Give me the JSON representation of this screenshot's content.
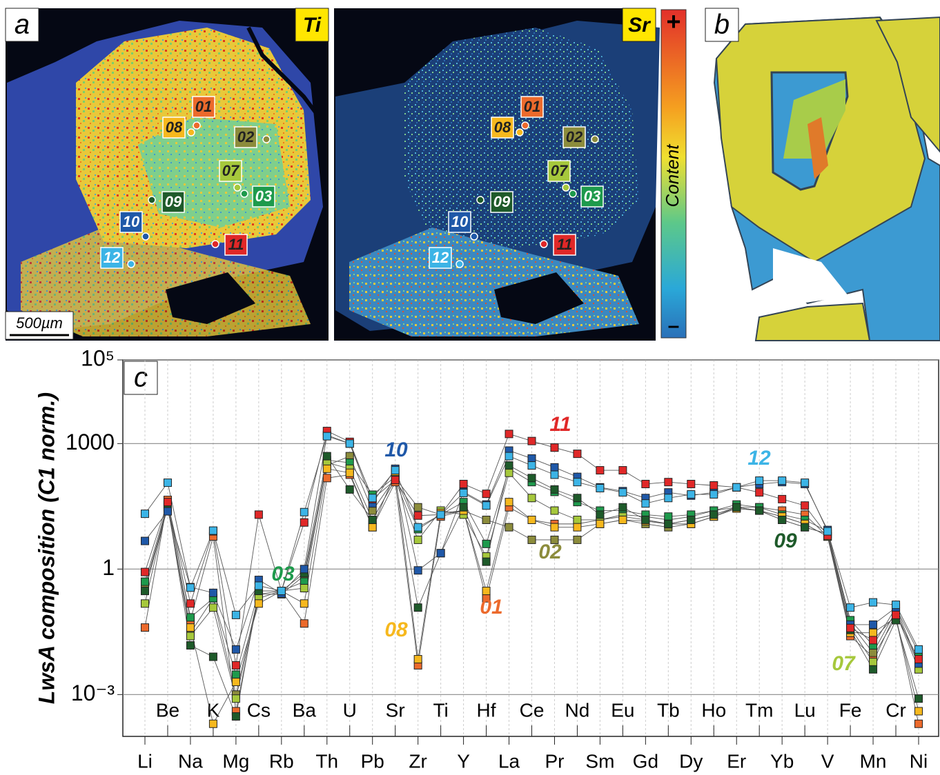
{
  "map_panels": {
    "panel_a_letter": "a",
    "ti_label": "Ti",
    "sr_label": "Sr",
    "scale_bar": "500µm",
    "colorbar_plus": "+",
    "colorbar_minus": "–",
    "colorbar_label": "Content",
    "panel_b_letter": "b",
    "spot_labels": [
      "01",
      "08",
      "02",
      "07",
      "03",
      "09",
      "10",
      "12",
      "11"
    ]
  },
  "chart_data": {
    "type": "line",
    "panel_letter": "c",
    "y_label": "LwsA composition (C1 norm.)",
    "log_y": true,
    "grid": true,
    "ylim": [
      0.0001,
      100000
    ],
    "yticks": [
      {
        "value": 100000,
        "label": "10⁵"
      },
      1000,
      1,
      {
        "value": 0.001,
        "label": "10⁻³"
      }
    ],
    "categories": [
      "Li",
      "Be",
      "Na",
      "K",
      "Mg",
      "Cs",
      "Rb",
      "Ba",
      "Th",
      "U",
      "Pb",
      "Sr",
      "Zr",
      "Ti",
      "Y",
      "Hf",
      "La",
      "Ce",
      "Pr",
      "Nd",
      "Sm",
      "Eu",
      "Gd",
      "Tb",
      "Dy",
      "Ho",
      "Er",
      "Tm",
      "Yb",
      "Lu",
      "V",
      "Fe",
      "Mn",
      "Cr",
      "Ni"
    ],
    "series": [
      {
        "name": "01",
        "color": "#ec6a2c",
        "values": [
          0.04,
          45,
          0.06,
          6,
          0.0004,
          0.25,
          0.3,
          0.05,
          150,
          180,
          10,
          120,
          0.005,
          18,
          25,
          0.2,
          30,
          15,
          12,
          12,
          15,
          20,
          18,
          15,
          18,
          25,
          30,
          30,
          25,
          20,
          6,
          0.025,
          0.008,
          0.07,
          0.0002
        ]
      },
      {
        "name": "02",
        "color": "#8c8c3c",
        "values": [
          0.4,
          30,
          0.03,
          0.2,
          0.001,
          0.25,
          0.25,
          0.7,
          300,
          500,
          25,
          150,
          30,
          20,
          25,
          15,
          10,
          5,
          5,
          5,
          12,
          15,
          12,
          10,
          12,
          18,
          30,
          25,
          15,
          10,
          7,
          0.05,
          0.01,
          0.1,
          0.005
        ]
      },
      {
        "name": "03",
        "color": "#1e9a4c",
        "values": [
          0.5,
          35,
          0.07,
          0.2,
          0.003,
          0.3,
          0.3,
          0.5,
          400,
          350,
          60,
          160,
          9,
          20,
          40,
          4,
          250,
          120,
          70,
          40,
          25,
          25,
          20,
          18,
          20,
          25,
          35,
          30,
          20,
          15,
          8,
          0.06,
          0.015,
          0.12,
          0.01
        ]
      },
      {
        "name": "07",
        "color": "#a6c83c",
        "values": [
          0.15,
          35,
          0.025,
          0.12,
          0.0008,
          0.2,
          0.3,
          0.35,
          350,
          250,
          15,
          140,
          5,
          25,
          20,
          2,
          200,
          50,
          25,
          15,
          15,
          18,
          15,
          12,
          15,
          20,
          30,
          25,
          18,
          12,
          6,
          0.04,
          0.006,
          0.09,
          0.004
        ]
      },
      {
        "name": "08",
        "color": "#f6b81e",
        "values": [
          0.3,
          30,
          0.04,
          0.0002,
          0.002,
          0.15,
          0.3,
          0.15,
          250,
          200,
          10,
          200,
          0.007,
          22,
          25,
          0.3,
          40,
          15,
          10,
          10,
          12,
          15,
          14,
          12,
          12,
          18,
          28,
          25,
          18,
          12,
          6,
          0.03,
          0.03,
          0.07,
          0.0004
        ]
      },
      {
        "name": "09",
        "color": "#1e5a2a",
        "values": [
          0.3,
          35,
          0.015,
          0.008,
          0.0003,
          0.3,
          0.3,
          0.8,
          500,
          80,
          15,
          140,
          0.12,
          2.4,
          30,
          1.5,
          300,
          150,
          80,
          50,
          20,
          30,
          15,
          12,
          15,
          20,
          30,
          25,
          15,
          10,
          7,
          0.035,
          0.004,
          0.06,
          0.0008
        ]
      },
      {
        "name": "10",
        "color": "#1f58a8",
        "values": [
          4.7,
          24,
          0.37,
          0.27,
          0.012,
          0.55,
          0.26,
          1,
          1600,
          1000,
          37,
          250,
          0.93,
          2.4,
          70,
          35,
          680,
          440,
          270,
          160,
          90,
          73,
          50,
          68,
          57,
          68,
          90,
          108,
          120,
          108,
          8.6,
          0.047,
          0.047,
          0.12,
          0.0055
        ]
      },
      {
        "name": "11",
        "color": "#e02828",
        "values": [
          0.85,
          40,
          0.15,
          8,
          0.005,
          20,
          0.3,
          13,
          2000,
          1100,
          47,
          135,
          19,
          20,
          108,
          63,
          1700,
          1150,
          800,
          570,
          230,
          230,
          108,
          120,
          108,
          100,
          90,
          68,
          47,
          33,
          6.3,
          0.039,
          0.02,
          0.08,
          0.007
        ]
      },
      {
        "name": "12",
        "color": "#3cb4e6",
        "values": [
          21,
          116,
          0.36,
          8.3,
          0.08,
          0.4,
          0.3,
          23,
          1500,
          1000,
          50,
          230,
          10,
          20,
          66,
          33,
          500,
          300,
          180,
          120,
          86,
          68,
          37,
          50,
          61,
          61,
          90,
          130,
          130,
          116,
          8,
          0.12,
          0.16,
          0.14,
          0.012
        ]
      }
    ]
  }
}
